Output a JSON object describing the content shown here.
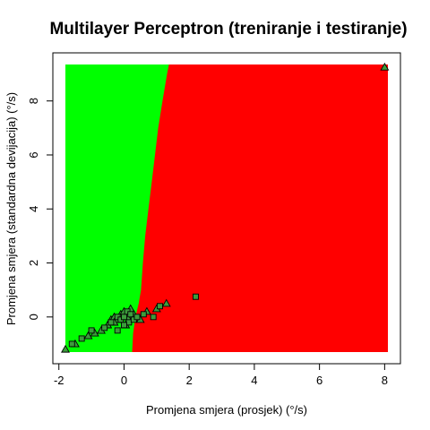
{
  "chart_data": {
    "type": "scatter",
    "title": "Multilayer Perceptron (treniranje i testiranje)",
    "xlabel": "Promjena smjera (prosjek) (°/s)",
    "ylabel": "Promjena smjera (standardna devijacija) (°/s)",
    "xlim": [
      -1.8,
      8.1
    ],
    "ylim": [
      -1.3,
      9.35
    ],
    "x_ticks": [
      -2,
      0,
      2,
      4,
      6,
      8
    ],
    "y_ticks": [
      0,
      2,
      4,
      6,
      8
    ],
    "grid": false,
    "legend": "none",
    "region_colors": {
      "left": "#00ff00",
      "right": "#ff0000"
    },
    "point_fill": "#3c9c3c",
    "decision_boundary": [
      {
        "y": -1.3,
        "x": 0.25
      },
      {
        "y": -0.6,
        "x": 0.28
      },
      {
        "y": 0.0,
        "x": 0.35
      },
      {
        "y": 0.5,
        "x": 0.45
      },
      {
        "y": 1.0,
        "x": 0.52
      },
      {
        "y": 2.0,
        "x": 0.58
      },
      {
        "y": 3.0,
        "x": 0.65
      },
      {
        "y": 4.0,
        "x": 0.75
      },
      {
        "y": 5.0,
        "x": 0.85
      },
      {
        "y": 6.0,
        "x": 0.95
      },
      {
        "y": 7.0,
        "x": 1.05
      },
      {
        "y": 8.0,
        "x": 1.18
      },
      {
        "y": 9.0,
        "x": 1.32
      },
      {
        "y": 9.35,
        "x": 1.38
      }
    ],
    "series": [
      {
        "marker": "triangle",
        "points": [
          [
            -1.8,
            -1.2
          ],
          [
            -1.5,
            -1.0
          ],
          [
            -1.1,
            -0.7
          ],
          [
            -0.9,
            -0.6
          ],
          [
            -0.7,
            -0.5
          ],
          [
            -0.5,
            -0.3
          ],
          [
            -0.4,
            -0.1
          ],
          [
            -0.3,
            0.0
          ],
          [
            -0.2,
            -0.1
          ],
          [
            -0.1,
            0.1
          ],
          [
            0.0,
            0.2
          ],
          [
            0.1,
            0.0
          ],
          [
            0.2,
            0.3
          ],
          [
            0.3,
            0.1
          ],
          [
            0.5,
            -0.1
          ],
          [
            0.7,
            0.2
          ],
          [
            1.0,
            0.3
          ],
          [
            1.3,
            0.5
          ],
          [
            -0.3,
            -0.2
          ],
          [
            0.05,
            -0.3
          ],
          [
            8.0,
            9.25
          ]
        ]
      },
      {
        "marker": "square",
        "points": [
          [
            -1.6,
            -1.0
          ],
          [
            -1.3,
            -0.8
          ],
          [
            -1.0,
            -0.5
          ],
          [
            -0.6,
            -0.4
          ],
          [
            -0.4,
            -0.2
          ],
          [
            -0.2,
            0.0
          ],
          [
            -0.1,
            -0.1
          ],
          [
            0.0,
            0.0
          ],
          [
            0.1,
            0.2
          ],
          [
            0.15,
            -0.2
          ],
          [
            0.2,
            0.1
          ],
          [
            0.3,
            -0.1
          ],
          [
            0.4,
            0.0
          ],
          [
            0.6,
            0.1
          ],
          [
            0.9,
            0.0
          ],
          [
            1.1,
            0.4
          ],
          [
            -0.2,
            -0.5
          ],
          [
            0.0,
            -0.3
          ],
          [
            2.2,
            0.75
          ]
        ]
      }
    ]
  }
}
